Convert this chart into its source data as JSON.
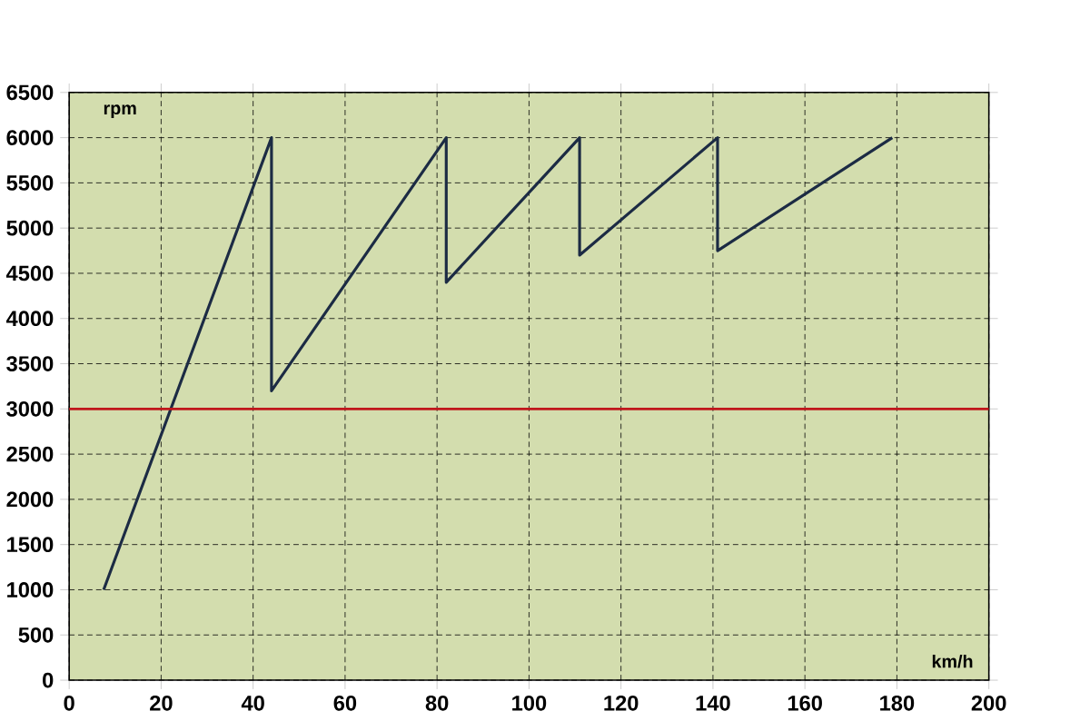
{
  "chart_data": {
    "type": "line",
    "xlabel": "km/h",
    "ylabel": "rpm",
    "x": [
      7.5,
      44,
      44,
      82,
      82,
      111,
      111,
      141,
      141,
      179
    ],
    "series": [
      {
        "color": "#1c2b44",
        "values": [
          1000,
          6000,
          3200,
          6000,
          4400,
          6000,
          4700,
          6000,
          4750,
          6000
        ]
      }
    ],
    "xlim": [
      0,
      200
    ],
    "xticks": [
      0,
      20,
      40,
      60,
      80,
      100,
      120,
      140,
      160,
      180,
      200
    ],
    "ylim": [
      0,
      6500
    ],
    "yticks": [
      0,
      500,
      1000,
      1500,
      2000,
      2500,
      3000,
      3500,
      4000,
      4500,
      5000,
      5500,
      6000,
      6500
    ],
    "grid": true,
    "marker": "none",
    "line_style": "solid",
    "ref_lines": [
      {
        "axis": "y",
        "value": 3000,
        "color": "#c0161b"
      }
    ]
  }
}
